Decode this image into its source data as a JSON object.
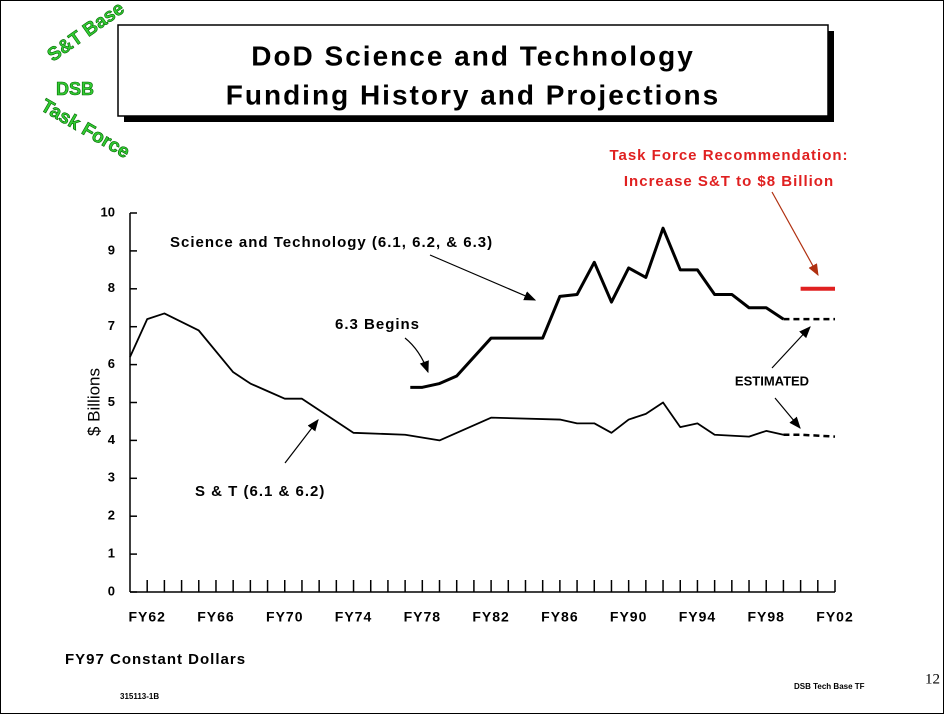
{
  "logo": {
    "top": "S&T Base",
    "middle": "DSB",
    "bottom": "Task Force"
  },
  "chart_data": {
    "type": "line",
    "title": [
      "DoD Science and Technology",
      "Funding History and Projections"
    ],
    "y_label": "$ Billions",
    "xlim": [
      1961,
      2002
    ],
    "ylim": [
      0,
      10
    ],
    "yticks": [
      0,
      1,
      2,
      3,
      4,
      5,
      6,
      7,
      8,
      9,
      10
    ],
    "xticks": [
      {
        "value": 1962,
        "label": "FY62"
      },
      {
        "value": 1966,
        "label": "FY66"
      },
      {
        "value": 1970,
        "label": "FY70"
      },
      {
        "value": 1974,
        "label": "FY74"
      },
      {
        "value": 1978,
        "label": "FY78"
      },
      {
        "value": 1982,
        "label": "FY82"
      },
      {
        "value": 1986,
        "label": "FY86"
      },
      {
        "value": 1990,
        "label": "FY90"
      },
      {
        "value": 1994,
        "label": "FY94"
      },
      {
        "value": 1998,
        "label": "FY98"
      },
      {
        "value": 2002,
        "label": "FY02"
      }
    ],
    "xminor_ticks": [
      1962,
      1963,
      1964,
      1965,
      1966,
      1967,
      1968,
      1969,
      1970,
      1971,
      1972,
      1973,
      1974,
      1975,
      1976,
      1977,
      1978,
      1979,
      1980,
      1981,
      1982,
      1983,
      1984,
      1985,
      1986,
      1987,
      1988,
      1989,
      1990,
      1991,
      1992,
      1993,
      1994,
      1995,
      1996,
      1997,
      1998,
      1999,
      2000,
      2001,
      2002
    ],
    "series": [
      {
        "name": "Science and Technology (6.1, 6.2, & 6.3)",
        "color": "#000000",
        "x": [
          1977.3,
          1978,
          1979,
          1980,
          1982,
          1985,
          1986,
          1987,
          1988,
          1989,
          1990,
          1991,
          1992,
          1993,
          1994,
          1995,
          1996,
          1997,
          1998,
          1999
        ],
        "values": [
          5.4,
          5.4,
          5.5,
          5.7,
          6.7,
          6.7,
          7.8,
          7.85,
          8.7,
          7.65,
          8.55,
          8.3,
          9.6,
          8.5,
          8.5,
          7.85,
          7.85,
          7.5,
          7.5,
          7.2
        ],
        "estimated": {
          "x": [
            1999,
            2002
          ],
          "values": [
            7.2,
            7.2
          ]
        }
      },
      {
        "name": "S & T (6.1 & 6.2)",
        "color": "#000000",
        "x": [
          1961,
          1962,
          1963,
          1965,
          1967,
          1968,
          1969,
          1970,
          1971,
          1974,
          1977,
          1979,
          1982,
          1986,
          1987,
          1988,
          1989,
          1990,
          1991,
          1992,
          1993,
          1994,
          1995,
          1997,
          1998,
          1999
        ],
        "values": [
          6.2,
          7.2,
          7.35,
          6.9,
          5.8,
          5.5,
          5.3,
          5.1,
          5.1,
          4.2,
          4.15,
          4.0,
          4.6,
          4.55,
          4.45,
          4.45,
          4.2,
          4.55,
          4.7,
          5.0,
          4.35,
          4.45,
          4.15,
          4.1,
          4.25,
          4.15
        ],
        "estimated": {
          "x": [
            1999,
            2000,
            2002
          ],
          "values": [
            4.15,
            4.15,
            4.1
          ]
        }
      }
    ],
    "annotations": {
      "phase": "6.3 Begins",
      "estimated": "ESTIMATED"
    },
    "recommendation": {
      "lines": [
        "Task Force Recommendation:",
        "Increase S&T to $8 Billion"
      ],
      "color": "#e02020",
      "x": [
        2000,
        2002
      ],
      "value": 8
    },
    "note": "FY97 Constant Dollars"
  },
  "footer": {
    "code": "315113-1B",
    "source": "DSB Tech Base TF",
    "page": "12"
  }
}
